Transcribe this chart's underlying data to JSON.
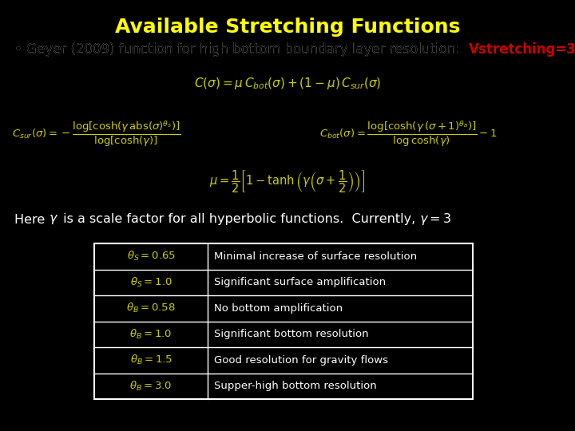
{
  "background_color": "#000000",
  "title": "Available Stretching Functions",
  "title_color": "#ffff00",
  "title_fontsize": 18,
  "bullet_text": "• Geyer (2009) function for high bottom boundary layer resolution:  ",
  "bullet_color": "#ffffff",
  "bullet_highlight": "Vstretching=3",
  "bullet_highlight_color": "#cc0000",
  "bullet_fontsize": 12,
  "eq_color": "#cccc00",
  "gamma_text_color": "#ffffff",
  "table_left_col": [
    "\\theta_S = 0.65",
    "\\theta_S = 1.0",
    "\\theta_B = 0.58",
    "\\theta_B = 1.0",
    "\\theta_B = 1.5",
    "\\theta_B = 3.0"
  ],
  "table_right_col": [
    "Minimal increase of surface resolution",
    "Significant surface amplification",
    "No bottom amplification",
    "Significant bottom resolution",
    "Good resolution for gravity flows",
    "Supper-high bottom resolution"
  ],
  "table_left_color": "#cccc00",
  "table_right_color": "#ffffff",
  "table_border_color": "#ffffff",
  "table_bg_color": "#000000"
}
